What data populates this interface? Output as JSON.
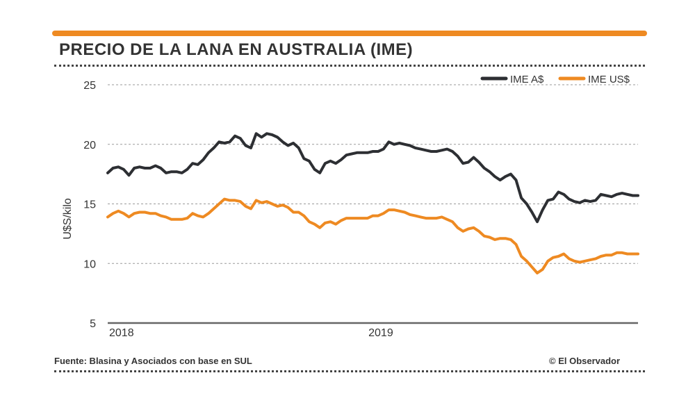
{
  "header": {
    "title": "PRECIO DE LA LANA EN AUSTRALIA (IME)"
  },
  "footer": {
    "source": "Fuente: Blasina y Asociados con base en SUL",
    "credit": "© El Observador"
  },
  "colors": {
    "accent": "#ee8a22",
    "dark": "#2d2f33",
    "grid": "#999999"
  },
  "chart_data": {
    "type": "line",
    "title": "PRECIO DE LA LANA EN AUSTRALIA (IME)",
    "ylabel": "U$S/kilo",
    "xlabel": "",
    "ylim": [
      5,
      25
    ],
    "yticks": [
      "5",
      "10",
      "15",
      "20",
      "25"
    ],
    "xlim": [
      0,
      100
    ],
    "xticks": [
      {
        "label": "2018",
        "x": 0
      },
      {
        "label": "2019",
        "x": 51
      }
    ],
    "legend_position": "top-right",
    "series": [
      {
        "name": "IME A$",
        "color": "#2d2f33",
        "x": [
          0,
          1,
          2,
          3,
          4,
          5,
          6,
          7,
          8,
          9,
          10,
          11,
          12,
          13,
          14,
          15,
          16,
          17,
          18,
          19,
          20,
          21,
          22,
          23,
          24,
          25,
          26,
          27,
          28,
          29,
          30,
          31,
          32,
          33,
          34,
          35,
          36,
          37,
          38,
          39,
          40,
          41,
          42,
          43,
          44,
          45,
          46,
          47,
          48,
          49,
          50,
          51,
          52,
          53,
          54,
          55,
          56,
          57,
          58,
          59,
          60,
          61,
          62,
          63,
          64,
          65,
          66,
          67,
          68,
          69,
          70,
          71,
          72,
          73,
          74,
          75,
          76,
          77,
          78,
          79,
          80,
          81,
          82,
          83,
          84,
          85,
          86,
          87,
          88,
          89,
          90,
          91,
          92,
          93,
          94,
          95,
          96,
          97,
          98,
          99,
          100
        ],
        "values": [
          17.6,
          18.0,
          18.1,
          17.9,
          17.4,
          18.0,
          18.1,
          18.0,
          18.0,
          18.2,
          18.0,
          17.6,
          17.7,
          17.7,
          17.6,
          17.9,
          18.4,
          18.3,
          18.7,
          19.3,
          19.7,
          20.2,
          20.1,
          20.2,
          20.7,
          20.5,
          19.9,
          19.7,
          20.9,
          20.6,
          20.9,
          20.8,
          20.6,
          20.2,
          19.9,
          20.1,
          19.7,
          18.8,
          18.6,
          17.9,
          17.6,
          18.4,
          18.6,
          18.4,
          18.7,
          19.1,
          19.2,
          19.3,
          19.3,
          19.3,
          19.4,
          19.4,
          19.6,
          20.2,
          20.0,
          20.1,
          20.0,
          19.9,
          19.7,
          19.6,
          19.5,
          19.4,
          19.4,
          19.5,
          19.6,
          19.4,
          19.0,
          18.4,
          18.5,
          18.9,
          18.5,
          18.0,
          17.7,
          17.3,
          17.0,
          17.3,
          17.5,
          17.0,
          15.5,
          15.0,
          14.3,
          13.5,
          14.5,
          15.3,
          15.4,
          16.0,
          15.8,
          15.4,
          15.2,
          15.1,
          15.3,
          15.2,
          15.3,
          15.8,
          15.7,
          15.6,
          15.8,
          15.9,
          15.8,
          15.7,
          15.7
        ],
        "label": "IME A$"
      },
      {
        "name": "IME US$",
        "color": "#ee8a22",
        "x": [
          0,
          1,
          2,
          3,
          4,
          5,
          6,
          7,
          8,
          9,
          10,
          11,
          12,
          13,
          14,
          15,
          16,
          17,
          18,
          19,
          20,
          21,
          22,
          23,
          24,
          25,
          26,
          27,
          28,
          29,
          30,
          31,
          32,
          33,
          34,
          35,
          36,
          37,
          38,
          39,
          40,
          41,
          42,
          43,
          44,
          45,
          46,
          47,
          48,
          49,
          50,
          51,
          52,
          53,
          54,
          55,
          56,
          57,
          58,
          59,
          60,
          61,
          62,
          63,
          64,
          65,
          66,
          67,
          68,
          69,
          70,
          71,
          72,
          73,
          74,
          75,
          76,
          77,
          78,
          79,
          80,
          81,
          82,
          83,
          84,
          85,
          86,
          87,
          88,
          89,
          90,
          91,
          92,
          93,
          94,
          95,
          96,
          97,
          98,
          99,
          100
        ],
        "values": [
          13.9,
          14.2,
          14.4,
          14.2,
          13.9,
          14.2,
          14.3,
          14.3,
          14.2,
          14.2,
          14.0,
          13.9,
          13.7,
          13.7,
          13.7,
          13.8,
          14.2,
          14.0,
          13.9,
          14.2,
          14.6,
          15.0,
          15.4,
          15.3,
          15.3,
          15.2,
          14.8,
          14.6,
          15.3,
          15.1,
          15.2,
          15.0,
          14.8,
          14.9,
          14.7,
          14.3,
          14.3,
          14.0,
          13.5,
          13.3,
          13.0,
          13.4,
          13.5,
          13.3,
          13.6,
          13.8,
          13.8,
          13.8,
          13.8,
          13.8,
          14.0,
          14.0,
          14.2,
          14.5,
          14.5,
          14.4,
          14.3,
          14.1,
          14.0,
          13.9,
          13.8,
          13.8,
          13.8,
          13.9,
          13.7,
          13.5,
          13.0,
          12.7,
          12.9,
          13.0,
          12.7,
          12.3,
          12.2,
          12.0,
          12.1,
          12.1,
          12.0,
          11.6,
          10.6,
          10.2,
          9.7,
          9.2,
          9.5,
          10.2,
          10.5,
          10.6,
          10.8,
          10.4,
          10.2,
          10.1,
          10.2,
          10.3,
          10.4,
          10.6,
          10.7,
          10.7,
          10.9,
          10.9,
          10.8,
          10.8,
          10.8
        ],
        "label": "IME US$"
      }
    ]
  }
}
